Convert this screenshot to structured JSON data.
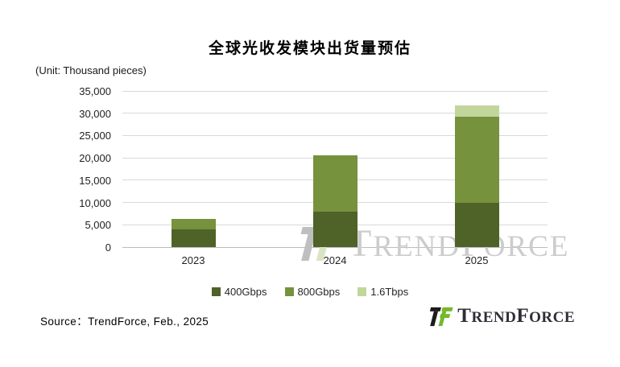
{
  "title": "全球光收发模块出货量预估",
  "unit_label": "(Unit: Thousand pieces)",
  "source_note": "Source：TrendForce, Feb., 2025",
  "logo": {
    "part1": "T",
    "part2": "REND",
    "part3": "F",
    "part4": "ORCE"
  },
  "colors": {
    "series_400gbps": "#4f6228",
    "series_800gbps": "#76923c",
    "series_1_6tbps": "#c2d69b",
    "gridline": "#d9d9d9",
    "axis_line": "#bdbdbd",
    "logo_green": "#76b82a",
    "logo_black": "#1c1c1c",
    "logo_text": "#2e2e38",
    "watermark_gray": "#bfbfbf",
    "watermark_light_green": "#d9e5c2"
  },
  "chart_data": {
    "type": "bar",
    "stacked": true,
    "title": "全球光收发模块出货量预估",
    "unit": "Thousand pieces",
    "categories": [
      "2023",
      "2024",
      "2025"
    ],
    "series": [
      {
        "name": "400Gbps",
        "color": "#4f6228",
        "values": [
          4000,
          8000,
          10000
        ]
      },
      {
        "name": "800Gbps",
        "color": "#76923c",
        "values": [
          2300,
          12500,
          19300
        ]
      },
      {
        "name": "1.6Tbps",
        "color": "#c2d69b",
        "values": [
          0,
          0,
          2500
        ]
      }
    ],
    "totals": [
      6300,
      20500,
      31800
    ],
    "ylim": [
      0,
      35000
    ],
    "ytick_step": 5000,
    "ytick_labels": [
      "0",
      "5,000",
      "10,000",
      "15,000",
      "20,000",
      "25,000",
      "30,000",
      "35,000"
    ],
    "grid": true,
    "legend_position": "bottom"
  }
}
